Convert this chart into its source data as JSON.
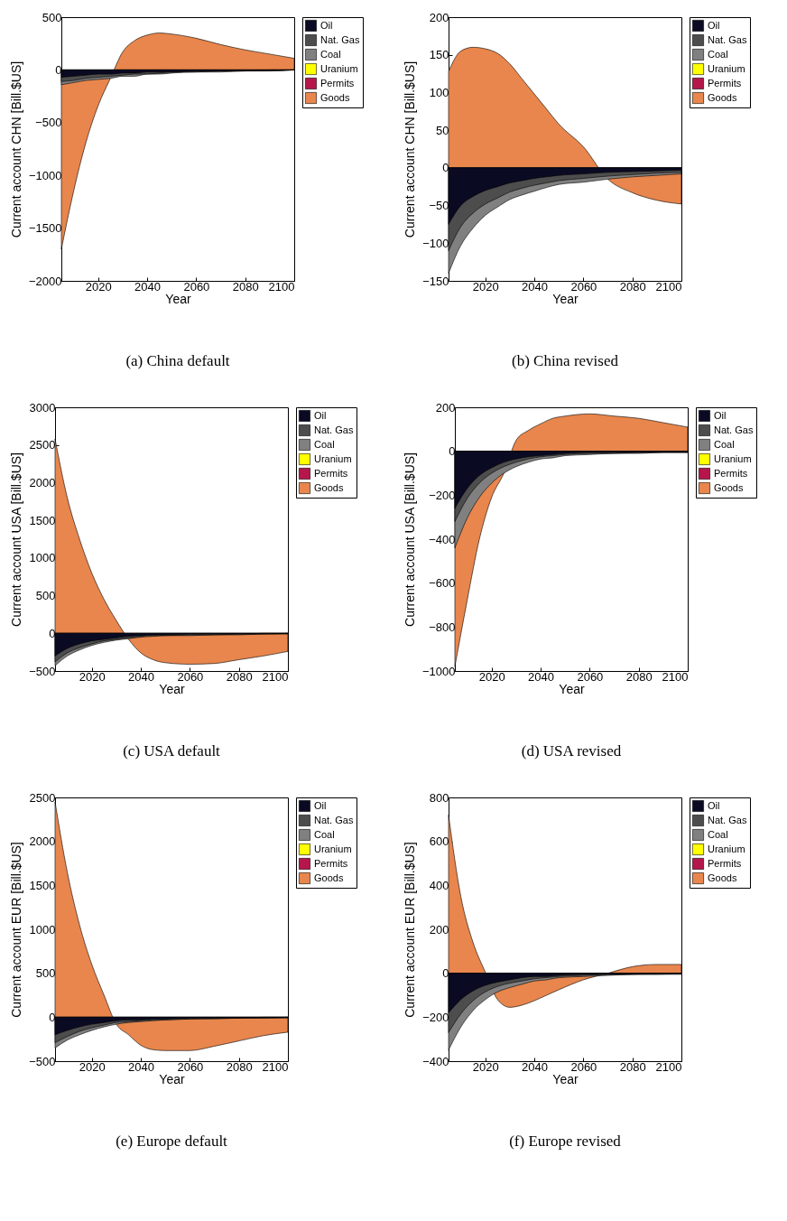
{
  "chart_data": [
    {
      "type": "area",
      "title": "(a) China default",
      "xlabel": "Year",
      "ylabel": "Current account CHN  [Bill.$US]",
      "legend": "top right",
      "grid": false,
      "x": [
        2005,
        2010,
        2015,
        2020,
        2025,
        2030,
        2035,
        2040,
        2045,
        2050,
        2060,
        2070,
        2080,
        2090,
        2100
      ],
      "xlim": [
        2005,
        2100
      ],
      "xticks": [
        2020,
        2040,
        2060,
        2080,
        2100
      ],
      "ylim": [
        -2000,
        500
      ],
      "yticks": [
        -2000,
        -1500,
        -1000,
        -500,
        0,
        500
      ],
      "series": [
        {
          "name": "Oil",
          "color": "#0a0a23",
          "values": [
            -70,
            -60,
            -50,
            -40,
            -40,
            -30,
            -30,
            -20,
            -20,
            -20,
            -10,
            -10,
            -10,
            0,
            0
          ]
        },
        {
          "name": "Nat. Gas",
          "color": "#4d4d4d",
          "values": [
            -110,
            -100,
            -80,
            -70,
            -60,
            -50,
            -40,
            -40,
            -30,
            -20,
            -20,
            -10,
            -10,
            -10,
            0
          ]
        },
        {
          "name": "Coal",
          "color": "#808080",
          "values": [
            -140,
            -120,
            -100,
            -90,
            -80,
            -60,
            -60,
            -40,
            -40,
            -30,
            -20,
            -20,
            -10,
            -10,
            0
          ]
        },
        {
          "name": "Uranium",
          "color": "#ffff00",
          "values": [
            null,
            null,
            null,
            null,
            null,
            null,
            null,
            null,
            null,
            null,
            null,
            null,
            null,
            null,
            null
          ]
        },
        {
          "name": "Permits",
          "color": "#b5174b",
          "values": [
            null,
            null,
            null,
            null,
            null,
            null,
            null,
            null,
            null,
            null,
            null,
            null,
            null,
            null,
            null
          ]
        },
        {
          "name": "Goods",
          "color": "#e8864d",
          "values": [
            -1700,
            -1150,
            -690,
            -340,
            -80,
            170,
            280,
            330,
            350,
            340,
            300,
            240,
            190,
            150,
            110
          ]
        }
      ]
    },
    {
      "type": "area",
      "title": "(b) China revised",
      "xlabel": "Year",
      "ylabel": "Current account CHN  [Bill.$US]",
      "legend": "top right",
      "grid": false,
      "x": [
        2005,
        2010,
        2015,
        2020,
        2025,
        2030,
        2035,
        2040,
        2045,
        2050,
        2060,
        2070,
        2080,
        2090,
        2100
      ],
      "xlim": [
        2005,
        2100
      ],
      "xticks": [
        2020,
        2040,
        2060,
        2080,
        2100
      ],
      "ylim": [
        -150,
        200
      ],
      "yticks": [
        -150,
        -100,
        -50,
        0,
        50,
        100,
        150,
        200
      ],
      "series": [
        {
          "name": "Oil",
          "color": "#0a0a23",
          "values": [
            -75,
            -50,
            -38,
            -30,
            -25,
            -20,
            -17,
            -14,
            -12,
            -10,
            -8,
            -6,
            -5,
            -4,
            -3
          ]
        },
        {
          "name": "Nat. Gas",
          "color": "#4d4d4d",
          "values": [
            -110,
            -78,
            -60,
            -48,
            -40,
            -32,
            -27,
            -23,
            -20,
            -17,
            -14,
            -11,
            -9,
            -7,
            -6
          ]
        },
        {
          "name": "Coal",
          "color": "#808080",
          "values": [
            -140,
            -103,
            -80,
            -63,
            -52,
            -42,
            -36,
            -31,
            -26,
            -22,
            -19,
            -15,
            -12,
            -10,
            -8
          ]
        },
        {
          "name": "Uranium",
          "color": "#ffff00",
          "values": [
            null,
            null,
            null,
            null,
            null,
            null,
            null,
            null,
            null,
            null,
            null,
            null,
            null,
            null,
            null
          ]
        },
        {
          "name": "Permits",
          "color": "#b5174b",
          "values": [
            null,
            null,
            null,
            null,
            null,
            null,
            null,
            null,
            null,
            null,
            null,
            null,
            null,
            null,
            null
          ]
        },
        {
          "name": "Goods",
          "color": "#e8864d",
          "values": [
            128,
            155,
            160,
            158,
            152,
            138,
            118,
            98,
            78,
            58,
            28,
            -15,
            -33,
            -43,
            -48
          ]
        }
      ]
    },
    {
      "type": "area",
      "title": "(c) USA default",
      "xlabel": "Year",
      "ylabel": "Current account USA  [Bill.$US]",
      "legend": "top right",
      "grid": false,
      "x": [
        2005,
        2010,
        2015,
        2020,
        2025,
        2030,
        2035,
        2040,
        2045,
        2050,
        2060,
        2070,
        2080,
        2090,
        2100
      ],
      "xlim": [
        2005,
        2100
      ],
      "xticks": [
        2020,
        2040,
        2060,
        2080,
        2100
      ],
      "ylim": [
        -500,
        3000
      ],
      "yticks": [
        -500,
        0,
        500,
        1000,
        1500,
        2000,
        2500,
        3000
      ],
      "series": [
        {
          "name": "Oil",
          "color": "#0a0a23",
          "values": [
            -300,
            -200,
            -140,
            -100,
            -80,
            -60,
            -40,
            -30,
            -20,
            -20,
            -10,
            -10,
            -10,
            0,
            0
          ]
        },
        {
          "name": "Nat. Gas",
          "color": "#4d4d4d",
          "values": [
            -380,
            -260,
            -190,
            -140,
            -100,
            -80,
            -60,
            -40,
            -30,
            -30,
            -20,
            -20,
            -10,
            -10,
            0
          ]
        },
        {
          "name": "Coal",
          "color": "#808080",
          "values": [
            -430,
            -300,
            -220,
            -160,
            -120,
            -90,
            -70,
            -50,
            -40,
            -30,
            -30,
            -20,
            -20,
            -10,
            -10
          ]
        },
        {
          "name": "Uranium",
          "color": "#ffff00",
          "values": [
            null,
            null,
            null,
            null,
            null,
            null,
            null,
            null,
            null,
            null,
            null,
            null,
            null,
            null,
            null
          ]
        },
        {
          "name": "Permits",
          "color": "#b5174b",
          "values": [
            null,
            null,
            null,
            null,
            null,
            null,
            null,
            null,
            null,
            null,
            null,
            null,
            null,
            null,
            null
          ]
        },
        {
          "name": "Goods",
          "color": "#e8864d",
          "values": [
            2580,
            1800,
            1250,
            800,
            450,
            170,
            -80,
            -260,
            -350,
            -390,
            -410,
            -400,
            -350,
            -300,
            -240
          ]
        }
      ]
    },
    {
      "type": "area",
      "title": "(d) USA revised",
      "xlabel": "Year",
      "ylabel": "Current account USA  [Bill.$US]",
      "legend": "top right",
      "grid": false,
      "x": [
        2005,
        2010,
        2015,
        2020,
        2025,
        2030,
        2035,
        2040,
        2045,
        2050,
        2060,
        2070,
        2080,
        2090,
        2100
      ],
      "xlim": [
        2005,
        2100
      ],
      "xticks": [
        2020,
        2040,
        2060,
        2080,
        2100
      ],
      "ylim": [
        -1000,
        200
      ],
      "yticks": [
        -1000,
        -800,
        -600,
        -400,
        -200,
        0,
        200
      ],
      "series": [
        {
          "name": "Oil",
          "color": "#0a0a23",
          "values": [
            -260,
            -170,
            -110,
            -75,
            -50,
            -35,
            -25,
            -20,
            -15,
            -10,
            -5,
            -5,
            -5,
            -5,
            -5
          ]
        },
        {
          "name": "Nat. Gas",
          "color": "#4d4d4d",
          "values": [
            -320,
            -215,
            -145,
            -100,
            -70,
            -50,
            -35,
            -25,
            -20,
            -15,
            -10,
            -10,
            -5,
            -5,
            -5
          ]
        },
        {
          "name": "Coal",
          "color": "#808080",
          "values": [
            -440,
            -305,
            -210,
            -145,
            -100,
            -70,
            -50,
            -35,
            -30,
            -20,
            -15,
            -10,
            -10,
            -5,
            -5
          ]
        },
        {
          "name": "Uranium",
          "color": "#ffff00",
          "values": [
            null,
            null,
            null,
            null,
            null,
            null,
            null,
            null,
            null,
            null,
            null,
            null,
            null,
            null,
            null
          ]
        },
        {
          "name": "Permits",
          "color": "#b5174b",
          "values": [
            null,
            null,
            null,
            null,
            null,
            null,
            null,
            null,
            null,
            null,
            null,
            null,
            null,
            null,
            null
          ]
        },
        {
          "name": "Goods",
          "color": "#e8864d",
          "values": [
            -980,
            -680,
            -400,
            -210,
            -100,
            50,
            95,
            125,
            150,
            160,
            170,
            160,
            150,
            130,
            110
          ]
        }
      ]
    },
    {
      "type": "area",
      "title": "(e) Europe default",
      "xlabel": "Year",
      "ylabel": "Current account EUR  [Bill.$US]",
      "legend": "top right",
      "grid": false,
      "x": [
        2005,
        2010,
        2015,
        2020,
        2025,
        2030,
        2035,
        2040,
        2045,
        2050,
        2060,
        2070,
        2080,
        2090,
        2100
      ],
      "xlim": [
        2005,
        2100
      ],
      "xticks": [
        2020,
        2040,
        2060,
        2080,
        2100
      ],
      "ylim": [
        -500,
        2500
      ],
      "yticks": [
        -500,
        0,
        500,
        1000,
        1500,
        2000,
        2500
      ],
      "series": [
        {
          "name": "Oil",
          "color": "#0a0a23",
          "values": [
            -200,
            -150,
            -110,
            -80,
            -60,
            -40,
            -30,
            -30,
            -20,
            -20,
            -10,
            -10,
            -10,
            0,
            0
          ]
        },
        {
          "name": "Nat. Gas",
          "color": "#4d4d4d",
          "values": [
            -290,
            -220,
            -160,
            -120,
            -90,
            -60,
            -50,
            -40,
            -30,
            -30,
            -20,
            -10,
            -10,
            -10,
            0
          ]
        },
        {
          "name": "Coal",
          "color": "#808080",
          "values": [
            -350,
            -260,
            -200,
            -150,
            -110,
            -80,
            -60,
            -50,
            -40,
            -30,
            -20,
            -20,
            -10,
            -10,
            -10
          ]
        },
        {
          "name": "Uranium",
          "color": "#ffff00",
          "values": [
            null,
            null,
            null,
            null,
            null,
            null,
            null,
            null,
            null,
            null,
            null,
            null,
            null,
            null,
            null
          ]
        },
        {
          "name": "Permits",
          "color": "#b5174b",
          "values": [
            null,
            null,
            null,
            null,
            null,
            null,
            null,
            null,
            null,
            null,
            null,
            null,
            null,
            null,
            null
          ]
        },
        {
          "name": "Goods",
          "color": "#e8864d",
          "values": [
            2450,
            1650,
            1050,
            600,
            250,
            -80,
            -200,
            -320,
            -370,
            -380,
            -380,
            -330,
            -270,
            -210,
            -170
          ]
        }
      ]
    },
    {
      "type": "area",
      "title": "(f) Europe revised",
      "xlabel": "Year",
      "ylabel": "Current account EUR  [Bill.$US]",
      "legend": "top right",
      "grid": false,
      "x": [
        2005,
        2010,
        2015,
        2020,
        2025,
        2030,
        2035,
        2040,
        2045,
        2050,
        2060,
        2070,
        2080,
        2090,
        2100
      ],
      "xlim": [
        2005,
        2100
      ],
      "xticks": [
        2020,
        2040,
        2060,
        2080,
        2100
      ],
      "ylim": [
        -400,
        800
      ],
      "yticks": [
        -400,
        -200,
        0,
        200,
        400,
        600,
        800
      ],
      "series": [
        {
          "name": "Oil",
          "color": "#0a0a23",
          "values": [
            -180,
            -120,
            -80,
            -55,
            -40,
            -30,
            -20,
            -15,
            -15,
            -10,
            -5,
            -5,
            -5,
            0,
            0
          ]
        },
        {
          "name": "Nat. Gas",
          "color": "#4d4d4d",
          "values": [
            -270,
            -185,
            -125,
            -85,
            -60,
            -45,
            -35,
            -25,
            -20,
            -15,
            -10,
            -5,
            -5,
            -5,
            0
          ]
        },
        {
          "name": "Coal",
          "color": "#808080",
          "values": [
            -350,
            -245,
            -170,
            -120,
            -85,
            -65,
            -50,
            -35,
            -30,
            -20,
            -15,
            -10,
            -5,
            -5,
            -5
          ]
        },
        {
          "name": "Uranium",
          "color": "#ffff00",
          "values": [
            null,
            null,
            null,
            null,
            null,
            null,
            null,
            null,
            null,
            null,
            null,
            null,
            null,
            null,
            null
          ]
        },
        {
          "name": "Permits",
          "color": "#b5174b",
          "values": [
            null,
            null,
            null,
            null,
            null,
            null,
            null,
            null,
            null,
            null,
            null,
            null,
            null,
            null,
            null
          ]
        },
        {
          "name": "Goods",
          "color": "#e8864d",
          "values": [
            720,
            350,
            140,
            5,
            -120,
            -155,
            -145,
            -125,
            -100,
            -75,
            -30,
            0,
            30,
            40,
            40
          ]
        }
      ]
    }
  ]
}
